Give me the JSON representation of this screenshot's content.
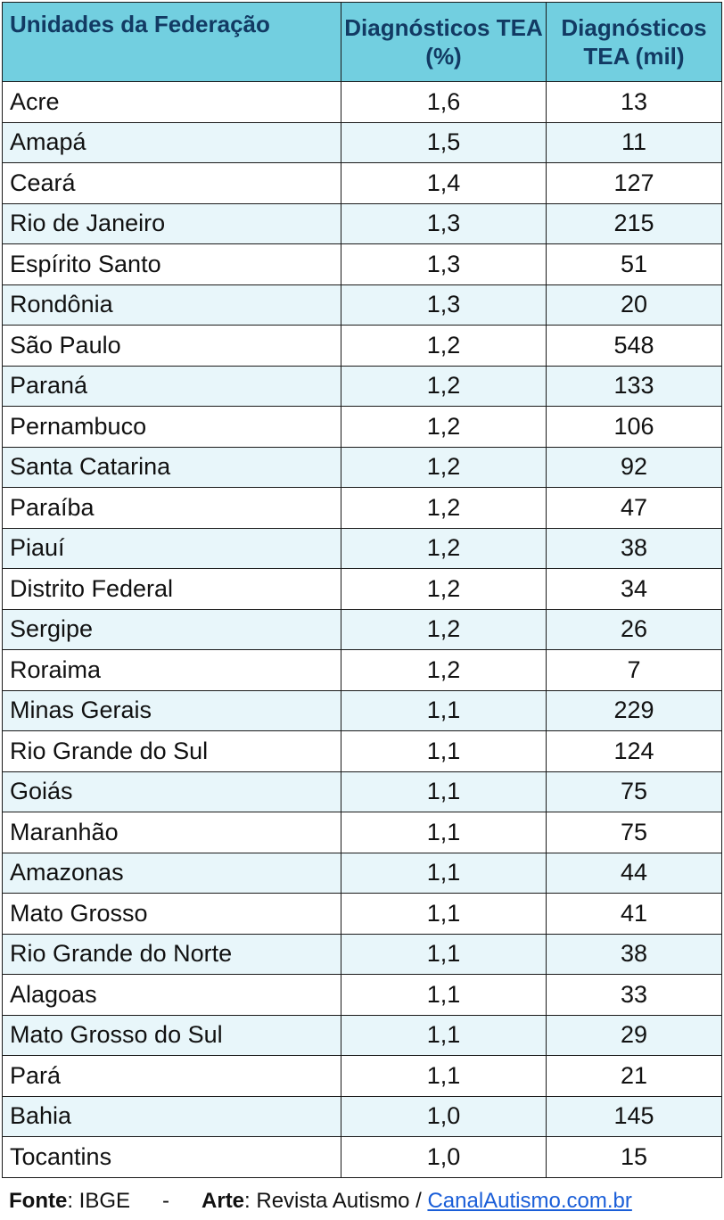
{
  "table": {
    "headers": [
      "Unidades da Federação",
      "Diagnósticos TEA (%)",
      "Diagnósticos TEA (mil)"
    ],
    "rows": [
      [
        "Acre",
        "1,6",
        "13"
      ],
      [
        "Amapá",
        "1,5",
        "11"
      ],
      [
        "Ceará",
        "1,4",
        "127"
      ],
      [
        "Rio de Janeiro",
        "1,3",
        "215"
      ],
      [
        "Espírito Santo",
        "1,3",
        "51"
      ],
      [
        "Rondônia",
        "1,3",
        "20"
      ],
      [
        "São Paulo",
        "1,2",
        "548"
      ],
      [
        "Paraná",
        "1,2",
        "133"
      ],
      [
        "Pernambuco",
        "1,2",
        "106"
      ],
      [
        "Santa Catarina",
        "1,2",
        "92"
      ],
      [
        "Paraíba",
        "1,2",
        "47"
      ],
      [
        "Piauí",
        "1,2",
        "38"
      ],
      [
        "Distrito Federal",
        "1,2",
        "34"
      ],
      [
        "Sergipe",
        "1,2",
        "26"
      ],
      [
        "Roraima",
        "1,2",
        "7"
      ],
      [
        "Minas Gerais",
        "1,1",
        "229"
      ],
      [
        "Rio Grande do Sul",
        "1,1",
        "124"
      ],
      [
        "Goiás",
        "1,1",
        "75"
      ],
      [
        "Maranhão",
        "1,1",
        "75"
      ],
      [
        "Amazonas",
        "1,1",
        "44"
      ],
      [
        "Mato Grosso",
        "1,1",
        "41"
      ],
      [
        "Rio Grande do Norte",
        "1,1",
        "38"
      ],
      [
        "Alagoas",
        "1,1",
        "33"
      ],
      [
        "Mato Grosso do Sul",
        "1,1",
        "29"
      ],
      [
        "Pará",
        "1,1",
        "21"
      ],
      [
        "Bahia",
        "1,0",
        "145"
      ],
      [
        "Tocantins",
        "1,0",
        "15"
      ]
    ]
  },
  "footer": {
    "source_label": "Fonte",
    "source_value": ": IBGE",
    "separator": "-",
    "art_label": "Arte",
    "art_value": ": Revista Autismo / ",
    "link_text": "CanalAutismo.com.br"
  },
  "colors": {
    "header_bg": "#72cfe0",
    "header_text": "#123a63",
    "alt_row_bg": "#e8f6fa",
    "link": "#1a5ed8"
  }
}
